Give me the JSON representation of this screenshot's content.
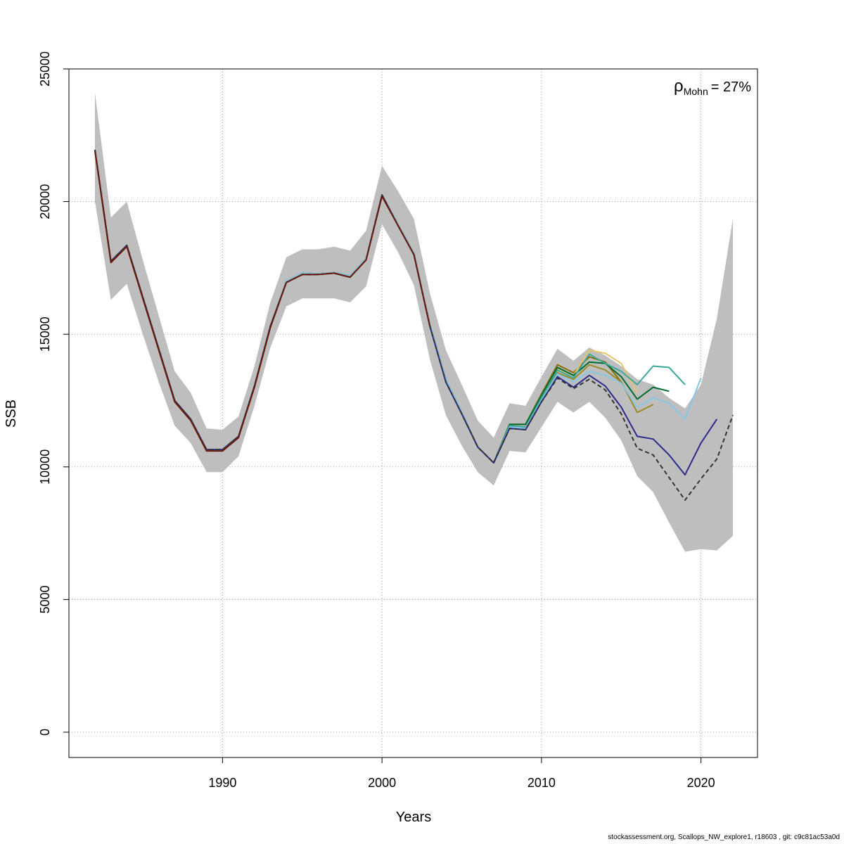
{
  "chart_data": {
    "type": "line",
    "xlabel": "Years",
    "ylabel": "SSB",
    "xlim": [
      1982,
      2022
    ],
    "ylim": [
      0,
      25000
    ],
    "x_ticks": [
      1990,
      2000,
      2010,
      2020
    ],
    "x_tick_labels": [
      "1990",
      "2000",
      "2010",
      "2020"
    ],
    "y_ticks": [
      0,
      5000,
      10000,
      15000,
      20000,
      25000
    ],
    "y_tick_labels": [
      "0",
      "5000",
      "10000",
      "15000",
      "20000",
      "25000"
    ],
    "grid": true,
    "annotation": {
      "symbol": "ρ",
      "subscript": "Mohn",
      "text": "= 27%",
      "placement": "top-right"
    },
    "confidence_band": {
      "x": [
        1982,
        1983,
        1984,
        1985,
        1986,
        1987,
        1988,
        1989,
        1990,
        1991,
        1992,
        1993,
        1994,
        1995,
        1996,
        1997,
        1998,
        1999,
        2000,
        2001,
        2002,
        2003,
        2004,
        2005,
        2006,
        2007,
        2008,
        2009,
        2010,
        2011,
        2012,
        2013,
        2014,
        2015,
        2016,
        2017,
        2018,
        2019,
        2020,
        2021,
        2022
      ],
      "upper": [
        24100,
        19400,
        20000,
        17800,
        15700,
        13600,
        12800,
        11450,
        11400,
        11900,
        13800,
        16200,
        17900,
        18200,
        18200,
        18300,
        18150,
        18900,
        21350,
        20400,
        19350,
        16550,
        14400,
        13100,
        11750,
        11100,
        12400,
        12300,
        13400,
        14450,
        14000,
        14500,
        14200,
        13800,
        13300,
        13100,
        12600,
        12200,
        13100,
        15600,
        19350
      ],
      "lower": [
        20000,
        16300,
        16900,
        15000,
        13200,
        11550,
        10900,
        9800,
        9800,
        10400,
        12300,
        14500,
        16050,
        16350,
        16350,
        16350,
        16200,
        16800,
        19150,
        18100,
        16850,
        14050,
        11950,
        10800,
        9800,
        9300,
        10600,
        10550,
        11500,
        12450,
        12050,
        12450,
        11850,
        11000,
        9650,
        9050,
        7900,
        6800,
        6900,
        6850,
        7400
      ]
    },
    "series": [
      {
        "color": "#8b6a00",
        "values": [
          21950,
          17750,
          18350,
          16400,
          14450,
          12500,
          11800,
          10650,
          10650,
          11150,
          13050,
          15300,
          17000,
          17300,
          17280,
          17320,
          17200,
          17850,
          20250,
          19150,
          18050,
          15350,
          13300,
          12050,
          10750,
          10150,
          11600,
          11600,
          12750,
          13850,
          13550,
          14150,
          13950,
          13200,
          null,
          null,
          null,
          null,
          null,
          null,
          null
        ]
      },
      {
        "color": "#e6c46a",
        "values": [
          21950,
          17750,
          18350,
          16400,
          14450,
          12500,
          11800,
          10650,
          10650,
          11150,
          13050,
          15300,
          17000,
          17300,
          17280,
          17320,
          17200,
          17850,
          20250,
          19150,
          18050,
          15350,
          13300,
          12050,
          10750,
          10150,
          11600,
          11600,
          12700,
          13700,
          13450,
          14400,
          14280,
          13900,
          12800,
          null,
          null,
          null,
          null,
          null,
          null
        ]
      },
      {
        "color": "#9a8c2a",
        "values": [
          21950,
          17750,
          18350,
          16400,
          14450,
          12500,
          11800,
          10650,
          10650,
          11150,
          13050,
          15300,
          17000,
          17300,
          17280,
          17320,
          17200,
          17850,
          20250,
          19150,
          18050,
          15350,
          13300,
          12050,
          10750,
          10150,
          11600,
          11600,
          12650,
          13550,
          13300,
          13850,
          13650,
          13200,
          12050,
          12350,
          null,
          null,
          null,
          null,
          null
        ]
      },
      {
        "color": "#006b2e",
        "values": [
          21950,
          17750,
          18350,
          16400,
          14450,
          12500,
          11800,
          10650,
          10650,
          11150,
          13050,
          15300,
          17000,
          17300,
          17280,
          17320,
          17200,
          17850,
          20250,
          19150,
          18050,
          15350,
          13300,
          12050,
          10750,
          10150,
          11600,
          11600,
          12700,
          13750,
          13450,
          13950,
          13900,
          13400,
          12550,
          13000,
          12850,
          null,
          null,
          null,
          null
        ]
      },
      {
        "color": "#3aa89b",
        "values": [
          21950,
          17750,
          18350,
          16400,
          14450,
          12500,
          11800,
          10650,
          10650,
          11150,
          13050,
          15300,
          17000,
          17300,
          17280,
          17320,
          17200,
          17850,
          20250,
          19150,
          18050,
          15350,
          13300,
          12050,
          10750,
          10150,
          11550,
          11500,
          12600,
          13650,
          13350,
          14250,
          13900,
          13600,
          13100,
          13800,
          13750,
          13100,
          null,
          null,
          null
        ]
      },
      {
        "color": "#87c8e6",
        "values": [
          21950,
          17750,
          18350,
          16400,
          14450,
          12500,
          11800,
          10650,
          10650,
          11150,
          13050,
          15300,
          17000,
          17300,
          17280,
          17320,
          17200,
          17850,
          20250,
          19150,
          18050,
          15350,
          13300,
          12050,
          10750,
          10150,
          11500,
          11450,
          12500,
          13500,
          13200,
          13600,
          13450,
          13150,
          12250,
          12600,
          12400,
          11800,
          13350,
          null,
          null
        ]
      },
      {
        "color": "#2e2a8c",
        "values": [
          21950,
          17750,
          18350,
          16400,
          14450,
          12500,
          11800,
          10650,
          10650,
          11150,
          13050,
          15300,
          16950,
          17250,
          17250,
          17300,
          17150,
          17800,
          20250,
          19100,
          18000,
          15300,
          13200,
          12000,
          10750,
          10150,
          11450,
          11400,
          12450,
          13400,
          13000,
          13450,
          13050,
          12250,
          11150,
          11050,
          10450,
          9700,
          10900,
          11800,
          null
        ]
      },
      {
        "color": "#333333",
        "dashed": true,
        "values": [
          21950,
          17750,
          18350,
          16400,
          14450,
          12500,
          11800,
          10650,
          10650,
          11150,
          13050,
          15300,
          16950,
          17250,
          17250,
          17300,
          17150,
          17800,
          20250,
          19100,
          18000,
          15300,
          13200,
          12000,
          10750,
          10150,
          11450,
          11400,
          12450,
          13350,
          12950,
          13300,
          12900,
          12000,
          10700,
          10450,
          9600,
          8750,
          9550,
          10300,
          11950
        ]
      },
      {
        "color": "#6b1a0a",
        "values": [
          21900,
          17700,
          18300,
          16350,
          14400,
          12450,
          11750,
          10600,
          10600,
          11100,
          13000,
          15250,
          16950,
          17250,
          17250,
          17300,
          17150,
          17800,
          20200,
          19100,
          18000,
          15300,
          null,
          null,
          null,
          null,
          null,
          null,
          null,
          null,
          null,
          null,
          null,
          null,
          null,
          null,
          null,
          null,
          null,
          null,
          null
        ]
      }
    ]
  },
  "footer": "stockassessment.org, Scallops_NW_explore1, r18603 , git: c9c81ac53a0d"
}
